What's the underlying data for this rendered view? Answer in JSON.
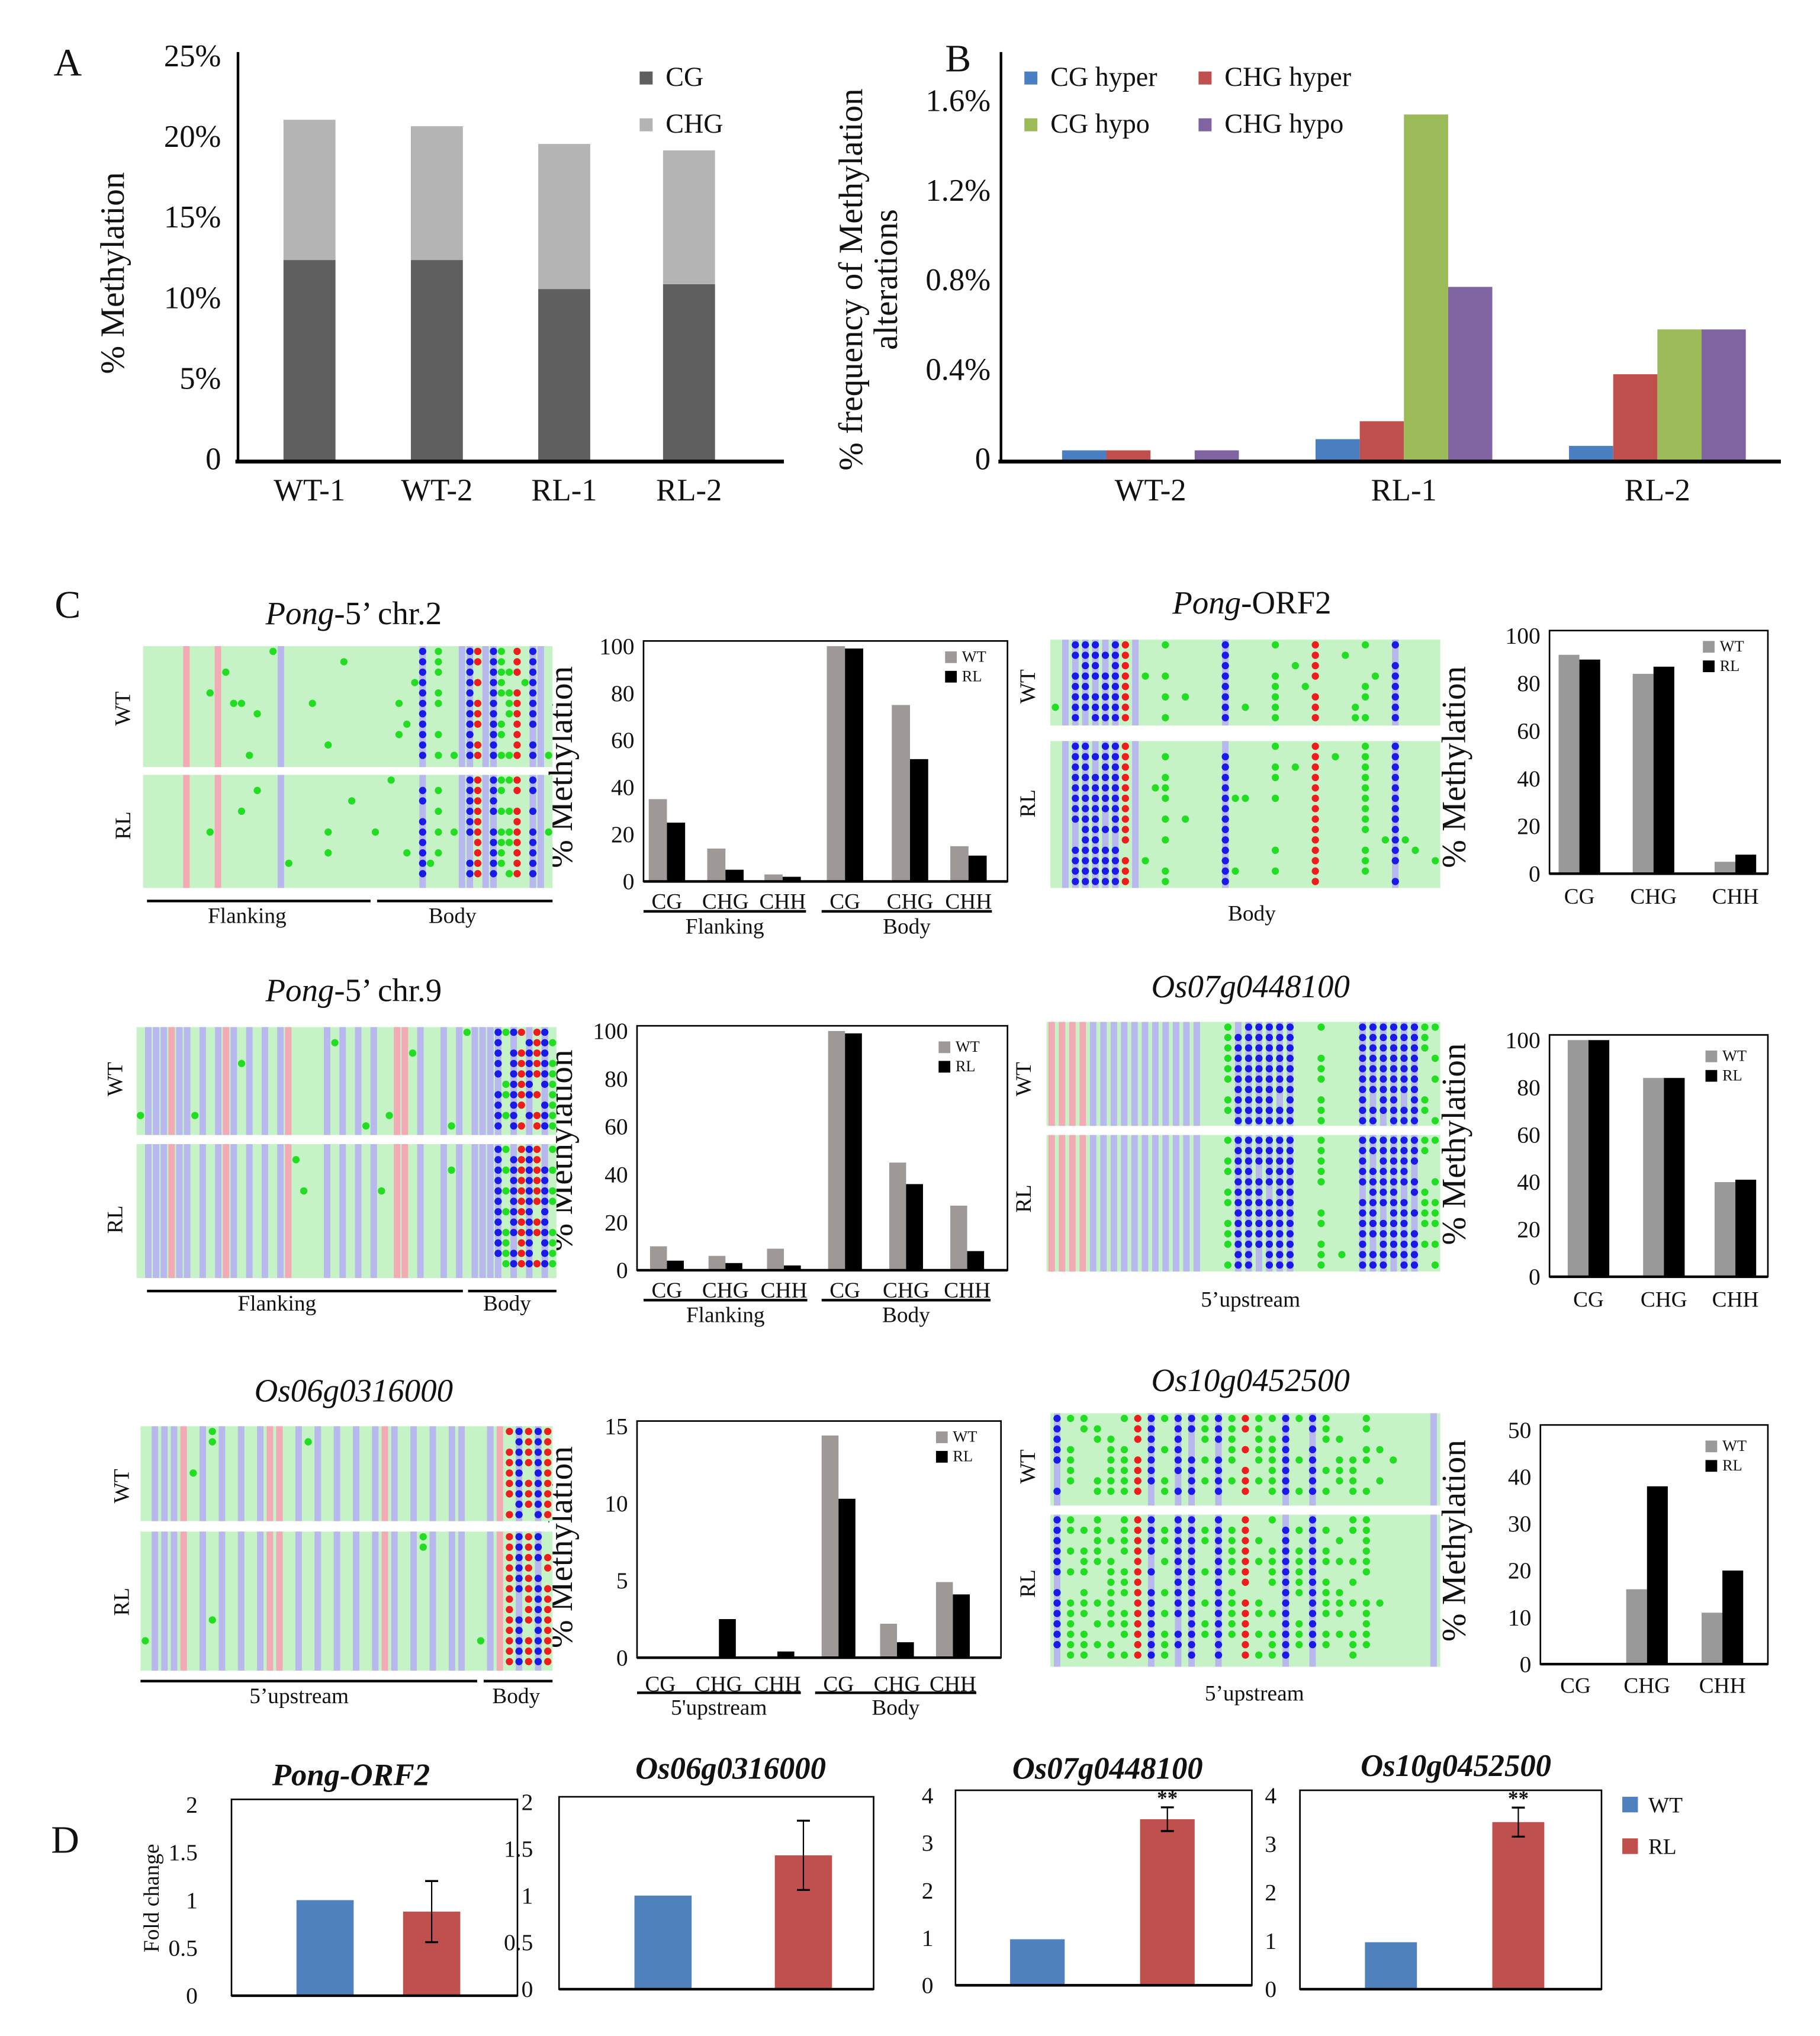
{
  "panel_letters": [
    "A",
    "B",
    "C",
    "D"
  ],
  "chart_data": [
    {
      "panel": "A",
      "type": "bar",
      "stacked": true,
      "categories": [
        "WT-1",
        "WT-2",
        "RL-1",
        "RL-2"
      ],
      "series": [
        {
          "name": "CG",
          "values": [
            12.5,
            12.5,
            10.7,
            11.0
          ],
          "color": "#5f5f5f"
        },
        {
          "name": "CHG",
          "values": [
            8.7,
            8.3,
            9.0,
            8.3
          ],
          "color": "#b4b4b4"
        }
      ],
      "ylabel": [
        "% Methylation"
      ],
      "ylim": [
        0,
        25
      ],
      "ytick_values": [
        0,
        5,
        10,
        15,
        20,
        25
      ],
      "ytick_labels": [
        "0",
        "5%",
        "10%",
        "15%",
        "20%",
        "25%"
      ],
      "legend": "top-right"
    },
    {
      "panel": "B",
      "type": "bar",
      "stacked": false,
      "categories": [
        "WT-2",
        "RL-1",
        "RL-2"
      ],
      "series": [
        {
          "name": "CG hyper",
          "values": [
            0.05,
            0.1,
            0.07
          ],
          "color": "#4a7fc1"
        },
        {
          "name": "CHG hyper",
          "values": [
            0.05,
            0.18,
            0.39
          ],
          "color": "#c0504d"
        },
        {
          "name": "CG hypo",
          "values": [
            0,
            1.55,
            0.59
          ],
          "color": "#9bbb59"
        },
        {
          "name": "CHG hypo",
          "values": [
            0.05,
            0.78,
            0.59
          ],
          "color": "#8064a2"
        }
      ],
      "ylabel": [
        "% frequency of Methylation",
        "alterations"
      ],
      "ylim": [
        0,
        1.8
      ],
      "ytick_values": [
        0,
        0.4,
        0.8,
        1.2,
        1.6
      ],
      "ytick_labels": [
        "0",
        "0.4%",
        "0.8%",
        "1.2%",
        "1.6%"
      ],
      "legend": "top-left"
    },
    {
      "panel": "C",
      "gene": "Pong-5' chr.2",
      "type": "bar",
      "stacked": false,
      "categories": [
        "CG",
        "CHG",
        "CHH",
        "CG",
        "CHG",
        "CHH"
      ],
      "groups": [
        {
          "label": "Flanking",
          "from": 0,
          "to": 2
        },
        {
          "label": "Body",
          "from": 3,
          "to": 5
        }
      ],
      "series": [
        {
          "name": "WT",
          "values": [
            35,
            14,
            3,
            100,
            75,
            15
          ],
          "color": "#9e9896"
        },
        {
          "name": "RL",
          "values": [
            25,
            5,
            2,
            99,
            52,
            11
          ],
          "color": "#000000"
        }
      ],
      "ylabel": [
        "% Methylation"
      ],
      "ylim": [
        0,
        100
      ],
      "ytick_values": [
        0,
        20,
        40,
        60,
        80,
        100
      ],
      "ytick_labels": [
        "0",
        "20",
        "40",
        "60",
        "80",
        "100"
      ],
      "legend": "top-right"
    },
    {
      "panel": "C",
      "gene": "Pong-ORF2",
      "type": "bar",
      "stacked": false,
      "categories": [
        "CG",
        "CHG",
        "CHH"
      ],
      "series": [
        {
          "name": "WT",
          "values": [
            92,
            84,
            5
          ],
          "color": "#999999"
        },
        {
          "name": "RL",
          "values": [
            90,
            87,
            8
          ],
          "color": "#000000"
        }
      ],
      "ylabel": [
        "% Methylation"
      ],
      "ylim": [
        0,
        100
      ],
      "ytick_values": [
        0,
        20,
        40,
        60,
        80,
        100
      ],
      "ytick_labels": [
        "0",
        "20",
        "40",
        "60",
        "80",
        "100"
      ],
      "legend": "top-right"
    },
    {
      "panel": "C",
      "gene": "Pong-5' chr.9",
      "type": "bar",
      "stacked": false,
      "categories": [
        "CG",
        "CHG",
        "CHH",
        "CG",
        "CHG",
        "CHH"
      ],
      "groups": [
        {
          "label": "Flanking",
          "from": 0,
          "to": 2
        },
        {
          "label": "Body",
          "from": 3,
          "to": 5
        }
      ],
      "series": [
        {
          "name": "WT",
          "values": [
            10,
            6,
            9,
            100,
            45,
            27
          ],
          "color": "#9e9896"
        },
        {
          "name": "RL",
          "values": [
            4,
            3,
            2,
            99,
            36,
            8
          ],
          "color": "#000000"
        }
      ],
      "ylabel": [
        "% Methylation"
      ],
      "ylim": [
        0,
        100
      ],
      "ytick_values": [
        0,
        20,
        40,
        60,
        80,
        100
      ],
      "ytick_labels": [
        "0",
        "20",
        "40",
        "60",
        "80",
        "100"
      ],
      "legend": "top-right"
    },
    {
      "panel": "C",
      "gene": "Os07g0448100",
      "type": "bar",
      "stacked": false,
      "categories": [
        "CG",
        "CHG",
        "CHH"
      ],
      "series": [
        {
          "name": "WT",
          "values": [
            100,
            84,
            40
          ],
          "color": "#999999"
        },
        {
          "name": "RL",
          "values": [
            100,
            84,
            41
          ],
          "color": "#000000"
        }
      ],
      "ylabel": [
        "% Methylation"
      ],
      "ylim": [
        0,
        100
      ],
      "ytick_values": [
        0,
        20,
        40,
        60,
        80,
        100
      ],
      "ytick_labels": [
        "0",
        "20",
        "40",
        "60",
        "80",
        "100"
      ],
      "legend": "top-right"
    },
    {
      "panel": "C",
      "gene": "Os06g0316000",
      "type": "bar",
      "stacked": false,
      "categories": [
        "CG",
        "CHG",
        "CHH",
        "CG",
        "CHG",
        "CHH"
      ],
      "groups": [
        {
          "label": "5'upstream",
          "from": 0,
          "to": 2
        },
        {
          "label": "Body",
          "from": 3,
          "to": 5
        }
      ],
      "series": [
        {
          "name": "WT",
          "values": [
            0,
            0,
            0,
            14.4,
            2.2,
            4.9
          ],
          "color": "#9e9896"
        },
        {
          "name": "RL",
          "values": [
            0,
            2.5,
            0.4,
            10.3,
            1.0,
            4.1
          ],
          "color": "#000000"
        }
      ],
      "ylabel": [
        "% Methylation"
      ],
      "ylim": [
        0,
        15
      ],
      "ytick_values": [
        0,
        5,
        10,
        15
      ],
      "ytick_labels": [
        "0",
        "5",
        "10",
        "15"
      ],
      "legend": "top-right"
    },
    {
      "panel": "C",
      "gene": "Os10g0452500",
      "type": "bar",
      "stacked": false,
      "categories": [
        "CG",
        "CHG",
        "CHH"
      ],
      "series": [
        {
          "name": "WT",
          "values": [
            0,
            16,
            11
          ],
          "color": "#999999"
        },
        {
          "name": "RL",
          "values": [
            0,
            38,
            20
          ],
          "color": "#000000"
        }
      ],
      "ylabel": [
        "% Methylation"
      ],
      "ylim": [
        0,
        50
      ],
      "ytick_values": [
        0,
        10,
        20,
        30,
        40,
        50
      ],
      "ytick_labels": [
        "0",
        "10",
        "20",
        "30",
        "40",
        "50"
      ],
      "legend": "top-right"
    },
    {
      "panel": "D",
      "title": "Pong-ORF2",
      "type": "bar",
      "categories": [
        "WT",
        "RL"
      ],
      "values": [
        1,
        0.88
      ],
      "errors": [
        0,
        0.32
      ],
      "significance": [
        "",
        ""
      ],
      "colors": [
        "#4f81bd",
        "#c0504d"
      ],
      "ylabel": [
        "Fold change"
      ],
      "ylim": [
        0,
        2
      ],
      "ytick_values": [
        0,
        0.5,
        1,
        1.5,
        2
      ],
      "ytick_labels": [
        "0",
        "0.5",
        "1",
        "1.5",
        "2"
      ]
    },
    {
      "panel": "D",
      "title": "Os06g0316000",
      "type": "bar",
      "categories": [
        "WT",
        "RL"
      ],
      "values": [
        1,
        1.43
      ],
      "errors": [
        0,
        0.37
      ],
      "significance": [
        "",
        ""
      ],
      "colors": [
        "#4f81bd",
        "#c0504d"
      ],
      "ylabel": [],
      "ylim": [
        0,
        2
      ],
      "ytick_values": [
        0,
        0.5,
        1,
        1.5,
        2
      ],
      "ytick_labels": [
        "0",
        "0.5",
        "1",
        "1.5",
        "2"
      ]
    },
    {
      "panel": "D",
      "title": "Os07g0448100",
      "type": "bar",
      "categories": [
        "WT",
        "RL"
      ],
      "values": [
        0.97,
        3.5
      ],
      "errors": [
        0,
        0.25
      ],
      "significance": [
        "",
        "**"
      ],
      "colors": [
        "#4f81bd",
        "#c0504d"
      ],
      "ylabel": [],
      "ylim": [
        0,
        4
      ],
      "ytick_values": [
        0,
        1,
        2,
        3,
        4
      ],
      "ytick_labels": [
        "0",
        "1",
        "2",
        "3",
        "4"
      ]
    },
    {
      "panel": "D",
      "title": "Os10g0452500",
      "type": "bar",
      "categories": [
        "WT",
        "RL"
      ],
      "values": [
        0.97,
        3.45
      ],
      "errors": [
        0,
        0.3
      ],
      "significance": [
        "",
        "**"
      ],
      "colors": [
        "#4f81bd",
        "#c0504d"
      ],
      "ylabel": [],
      "ylim": [
        0,
        4
      ],
      "ytick_values": [
        0,
        1,
        2,
        3,
        4
      ],
      "ytick_labels": [
        "0",
        "1",
        "2",
        "3",
        "4"
      ]
    }
  ],
  "d_legend": [
    {
      "name": "WT",
      "color": "#4f81bd"
    },
    {
      "name": "RL",
      "color": "#c0504d"
    }
  ],
  "methylation_plots": [
    {
      "title_italic": "Pong",
      "title_rest": "-5’ chr.2",
      "rows": [
        "WT",
        "RL"
      ],
      "regions": [
        "Flanking",
        "Body"
      ]
    },
    {
      "title_italic": "Pong",
      "title_rest": "-ORF2",
      "rows": [
        "WT",
        "RL"
      ],
      "regions": [
        "Body"
      ]
    },
    {
      "title_italic": "Pong",
      "title_rest": "-5’ chr.9",
      "rows": [
        "WT",
        "RL"
      ],
      "regions": [
        "Flanking",
        "Body"
      ]
    },
    {
      "title_italic": "Os07g0448100",
      "title_rest": "",
      "rows": [
        "WT",
        "RL"
      ],
      "regions": [
        "5’upstream"
      ]
    },
    {
      "title_italic": "Os06g0316000",
      "title_rest": "",
      "rows": [
        "WT",
        "RL"
      ],
      "regions": [
        "5’upstream",
        "Body"
      ]
    },
    {
      "title_italic": "Os10g0452500",
      "title_rest": "",
      "rows": [
        "WT",
        "RL"
      ],
      "regions": [
        "5’upstream"
      ]
    }
  ]
}
